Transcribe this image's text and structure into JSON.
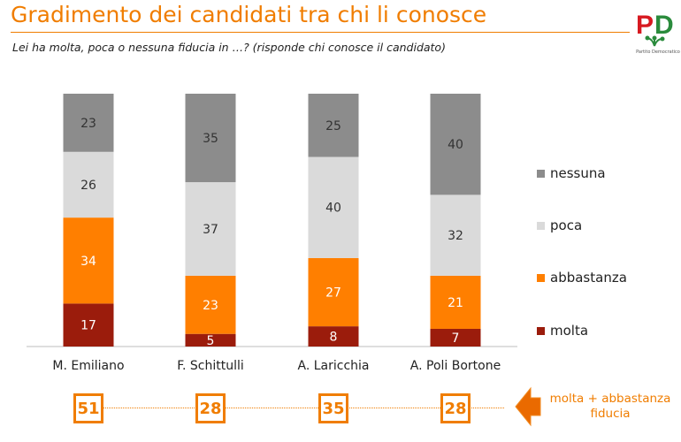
{
  "header": {
    "title": "Gradimento dei candidati tra chi li conosce",
    "subtitle": "Lei ha molta, poca o nessuna fiducia in …? (risponde chi conosce il candidato)"
  },
  "logo": {
    "letters": "PD",
    "caption": "Partito Democratico"
  },
  "chart_data": {
    "type": "bar",
    "stacked": true,
    "categories": [
      "M. Emiliano",
      "F. Schittulli",
      "A. Laricchia",
      "A. Poli Bortone"
    ],
    "series": [
      {
        "name": "molta",
        "values": [
          17,
          5,
          8,
          7
        ],
        "color": "#9b1c0c"
      },
      {
        "name": "abbastanza",
        "values": [
          34,
          23,
          27,
          21
        ],
        "color": "#ff7f00"
      },
      {
        "name": "poca",
        "values": [
          26,
          37,
          40,
          32
        ],
        "color": "#dadada"
      },
      {
        "name": "nessuna",
        "values": [
          23,
          35,
          25,
          40
        ],
        "color": "#8c8c8c"
      }
    ],
    "ylim": [
      0,
      100
    ],
    "legend_position": "right",
    "grid": false
  },
  "totals": {
    "label": "molta + abbastanza fiducia",
    "values": [
      "51",
      "28",
      "35",
      "28"
    ],
    "color": "#f07d00"
  }
}
